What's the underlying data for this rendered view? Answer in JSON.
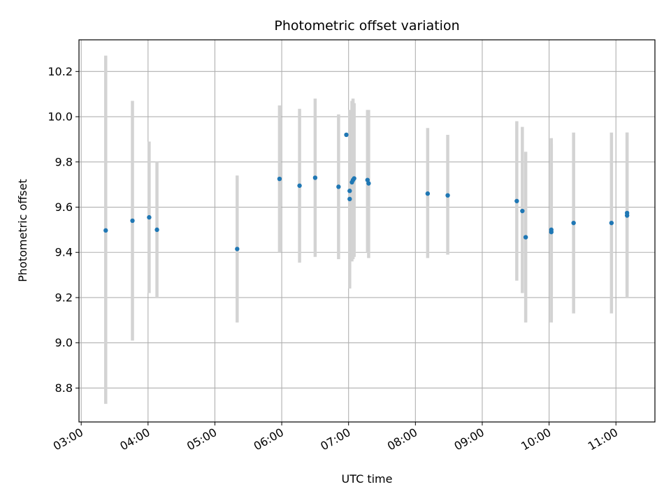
{
  "chart_data": {
    "type": "scatter",
    "title": "Photometric offset variation",
    "xlabel": "UTC time",
    "ylabel": "Photometric offset",
    "x_tick_labels": [
      "03:00",
      "04:00",
      "05:00",
      "06:00",
      "07:00",
      "08:00",
      "09:00",
      "10:00",
      "11:00"
    ],
    "x_range": [
      "02:58",
      "11:35"
    ],
    "y_tick_labels": [
      "8.8",
      "9.0",
      "9.2",
      "9.4",
      "9.6",
      "9.8",
      "10.0",
      "10.2"
    ],
    "y_ticks": [
      8.8,
      9.0,
      9.2,
      9.4,
      9.6,
      9.8,
      10.0,
      10.2
    ],
    "ylim": [
      8.65,
      10.34
    ],
    "grid": true,
    "colors": {
      "point": "#1f77b4",
      "error_bar": "#d3d3d3",
      "grid": "#b0b0b0"
    },
    "points": [
      {
        "x": "03:22",
        "y": 9.497,
        "err_low": 8.73,
        "err_high": 10.27
      },
      {
        "x": "03:46",
        "y": 9.54,
        "err_low": 9.01,
        "err_high": 10.07
      },
      {
        "x": "04:01",
        "y": 9.555,
        "err_low": 9.22,
        "err_high": 9.89
      },
      {
        "x": "04:08",
        "y": 9.5,
        "err_low": 9.2,
        "err_high": 9.8
      },
      {
        "x": "05:20",
        "y": 9.415,
        "err_low": 9.09,
        "err_high": 9.74
      },
      {
        "x": "05:58",
        "y": 9.725,
        "err_low": 9.4,
        "err_high": 10.05
      },
      {
        "x": "06:16",
        "y": 9.695,
        "err_low": 9.355,
        "err_high": 10.035
      },
      {
        "x": "06:30",
        "y": 9.73,
        "err_low": 9.38,
        "err_high": 10.08
      },
      {
        "x": "06:51",
        "y": 9.69,
        "err_low": 9.37,
        "err_high": 10.01
      },
      {
        "x": "06:58",
        "y": 9.92,
        "err_low": 9.92,
        "err_high": 9.92
      },
      {
        "x": "07:01",
        "y": 9.672,
        "err_low": 9.33,
        "err_high": 10.03
      },
      {
        "x": "07:01",
        "y": 9.636,
        "err_low": 9.24,
        "err_high": 10.03
      },
      {
        "x": "07:03",
        "y": 9.71,
        "err_low": 9.36,
        "err_high": 10.07
      },
      {
        "x": "07:04",
        "y": 9.72,
        "err_low": 9.37,
        "err_high": 10.08
      },
      {
        "x": "07:05",
        "y": 9.727,
        "err_low": 9.38,
        "err_high": 10.06
      },
      {
        "x": "07:17",
        "y": 9.72,
        "err_low": 9.4,
        "err_high": 10.03
      },
      {
        "x": "07:18",
        "y": 9.705,
        "err_low": 9.375,
        "err_high": 10.03
      },
      {
        "x": "08:11",
        "y": 9.66,
        "err_low": 9.375,
        "err_high": 9.95
      },
      {
        "x": "08:29",
        "y": 9.652,
        "err_low": 9.39,
        "err_high": 9.92
      },
      {
        "x": "09:31",
        "y": 9.627,
        "err_low": 9.275,
        "err_high": 9.98
      },
      {
        "x": "09:36",
        "y": 9.583,
        "err_low": 9.22,
        "err_high": 9.955
      },
      {
        "x": "09:39",
        "y": 9.467,
        "err_low": 9.09,
        "err_high": 9.845
      },
      {
        "x": "10:02",
        "y": 9.5,
        "err_low": 9.09,
        "err_high": 9.905
      },
      {
        "x": "10:02",
        "y": 9.49,
        "err_low": 9.1,
        "err_high": 9.88
      },
      {
        "x": "10:22",
        "y": 9.53,
        "err_low": 9.13,
        "err_high": 9.93
      },
      {
        "x": "10:56",
        "y": 9.53,
        "err_low": 9.13,
        "err_high": 9.93
      },
      {
        "x": "11:10",
        "y": 9.563,
        "err_low": 9.2,
        "err_high": 9.93
      },
      {
        "x": "11:10",
        "y": 9.574,
        "err_low": 9.22,
        "err_high": 9.93
      }
    ]
  }
}
